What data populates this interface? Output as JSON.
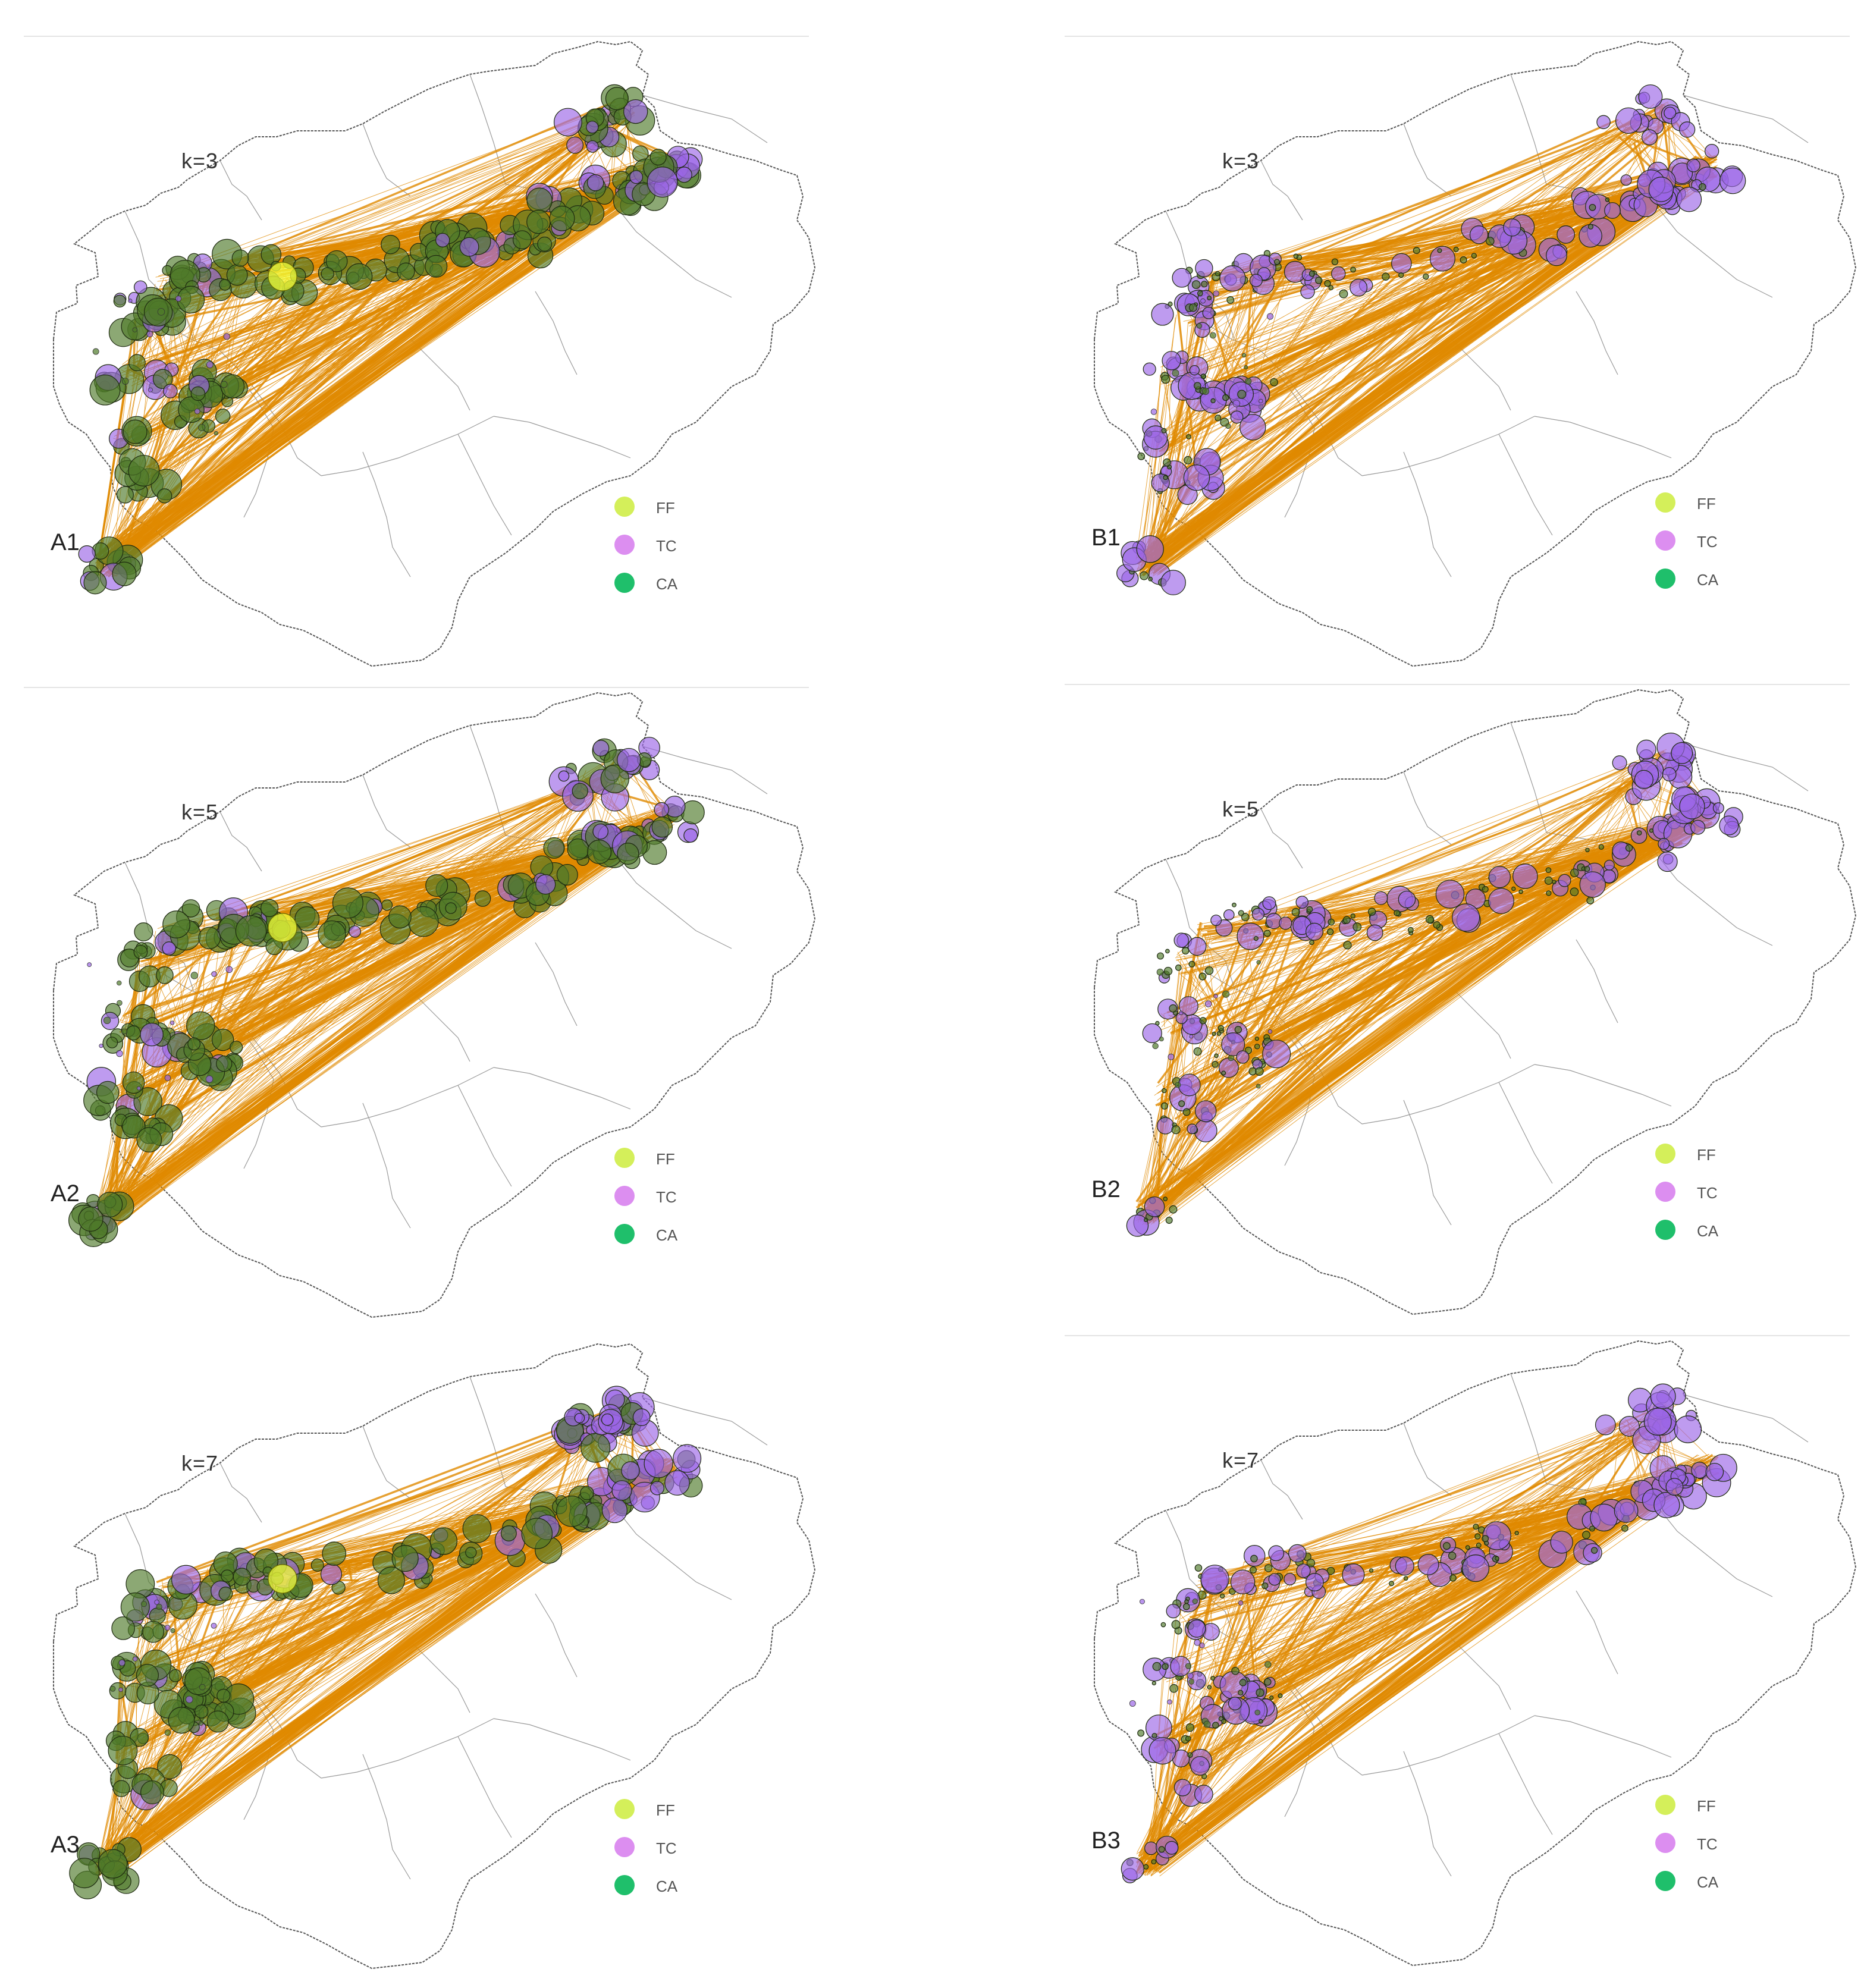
{
  "figure": {
    "panels": [
      {
        "id": "A1",
        "label": "A1",
        "k_label": "k=3"
      },
      {
        "id": "B1",
        "label": "B1",
        "k_label": "k=3"
      },
      {
        "id": "A2",
        "label": "A2",
        "k_label": "k=5"
      },
      {
        "id": "B2",
        "label": "B2",
        "k_label": "k=5"
      },
      {
        "id": "A3",
        "label": "A3",
        "k_label": "k=7"
      },
      {
        "id": "B3",
        "label": "B3",
        "k_label": "k=7"
      }
    ],
    "legend": {
      "items": [
        {
          "label": "FF",
          "color": "#d4ef5a"
        },
        {
          "label": "TC",
          "color": "#dc8ef0"
        },
        {
          "label": "CA",
          "color": "#1fbf6b"
        }
      ]
    },
    "colors": {
      "links": "#e08a00",
      "node_ca_fill": "#4e7a2a",
      "node_tc_fill": "#9b66e6",
      "node_ff_fill": "#f1ff3a",
      "boundary": "#555555"
    }
  }
}
